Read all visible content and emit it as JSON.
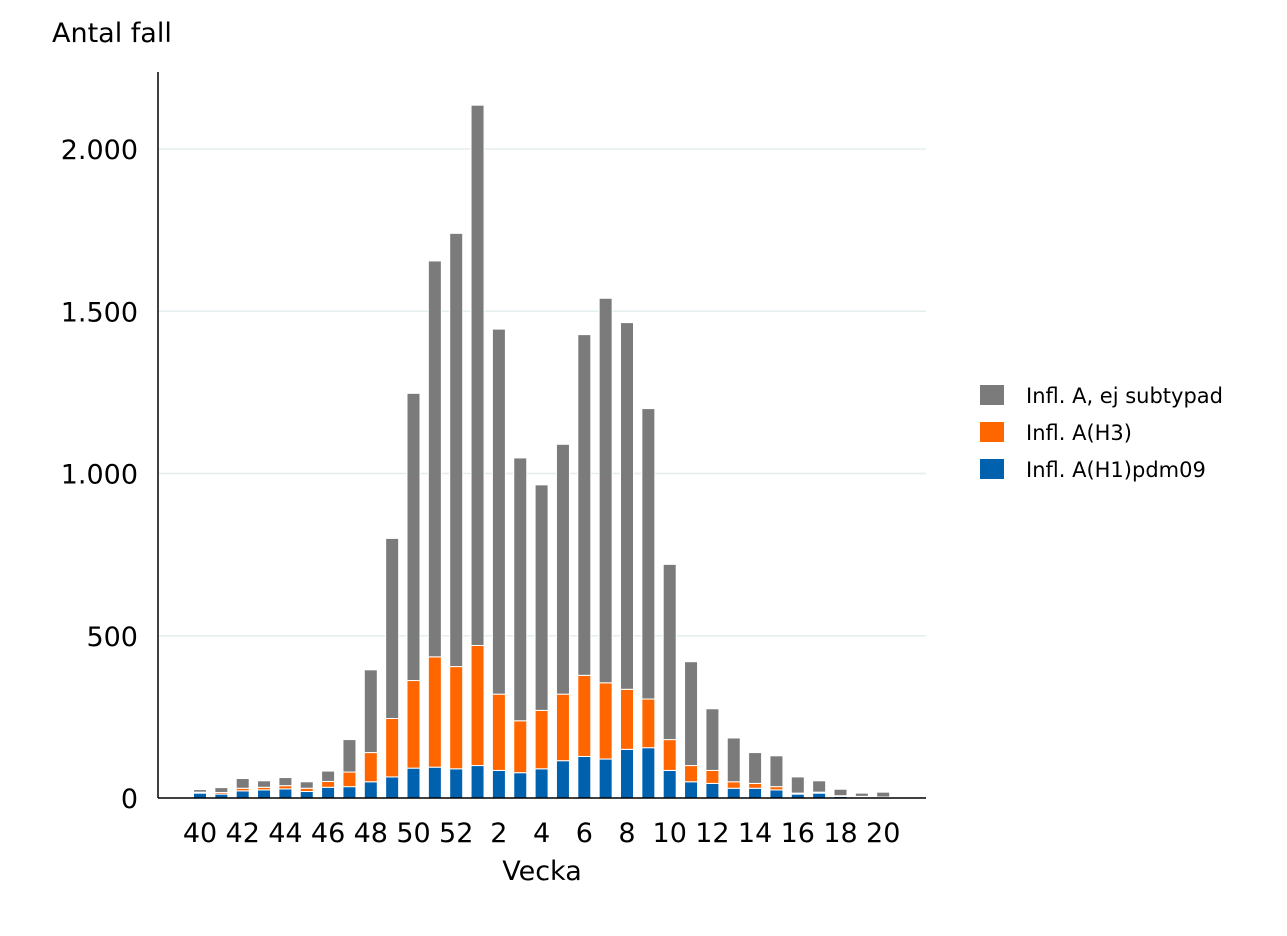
{
  "chart_data": {
    "type": "bar",
    "stacked": true,
    "title": "",
    "ylabel": "Antal fall",
    "xlabel": "Vecka",
    "ylim": [
      0,
      2200
    ],
    "yticks": [
      0,
      500,
      1000,
      1500,
      2000
    ],
    "ytick_labels": [
      "0",
      "500",
      "1.000",
      "1.500",
      "2.000"
    ],
    "grid": "horizontal",
    "legend_position": "right",
    "categories": [
      "40",
      "41",
      "42",
      "43",
      "44",
      "45",
      "46",
      "47",
      "48",
      "49",
      "50",
      "51",
      "52",
      "1",
      "2",
      "3",
      "4",
      "5",
      "6",
      "7",
      "8",
      "9",
      "10",
      "11",
      "12",
      "13",
      "14",
      "15",
      "16",
      "17",
      "18",
      "19",
      "20"
    ],
    "xtick_labels": [
      "40",
      "42",
      "44",
      "46",
      "48",
      "50",
      "52",
      "2",
      "4",
      "6",
      "8",
      "10",
      "12",
      "14",
      "16",
      "18",
      "20"
    ],
    "xtick_indices": [
      0,
      2,
      4,
      6,
      8,
      10,
      12,
      14,
      16,
      18,
      20,
      22,
      24,
      26,
      28,
      30,
      32
    ],
    "series": [
      {
        "name": "Infl. A(H1)pdm09",
        "color": "#0061ae",
        "values": [
          15,
          12,
          22,
          25,
          28,
          20,
          33,
          35,
          50,
          65,
          92,
          95,
          90,
          100,
          85,
          78,
          90,
          115,
          128,
          120,
          150,
          155,
          85,
          50,
          45,
          30,
          30,
          25,
          12,
          15,
          5,
          3,
          2
        ]
      },
      {
        "name": "Infl. A(H3)",
        "color": "#ff6600",
        "values": [
          3,
          5,
          8,
          8,
          10,
          10,
          18,
          45,
          90,
          180,
          270,
          340,
          315,
          370,
          235,
          160,
          180,
          205,
          250,
          235,
          185,
          150,
          95,
          50,
          40,
          20,
          15,
          10,
          3,
          3,
          2,
          2,
          1
        ]
      },
      {
        "name": "Infl. A, ej subtypad",
        "color": "#7b7b7b",
        "values": [
          8,
          15,
          30,
          20,
          25,
          20,
          32,
          100,
          255,
          555,
          885,
          1220,
          1335,
          1665,
          1125,
          810,
          695,
          770,
          1050,
          1185,
          1130,
          895,
          540,
          320,
          190,
          135,
          95,
          95,
          50,
          35,
          20,
          10,
          15
        ]
      }
    ],
    "legend_order": [
      "Infl. A, ej subtypad",
      "Infl. A(H3)",
      "Infl. A(H1)pdm09"
    ]
  }
}
